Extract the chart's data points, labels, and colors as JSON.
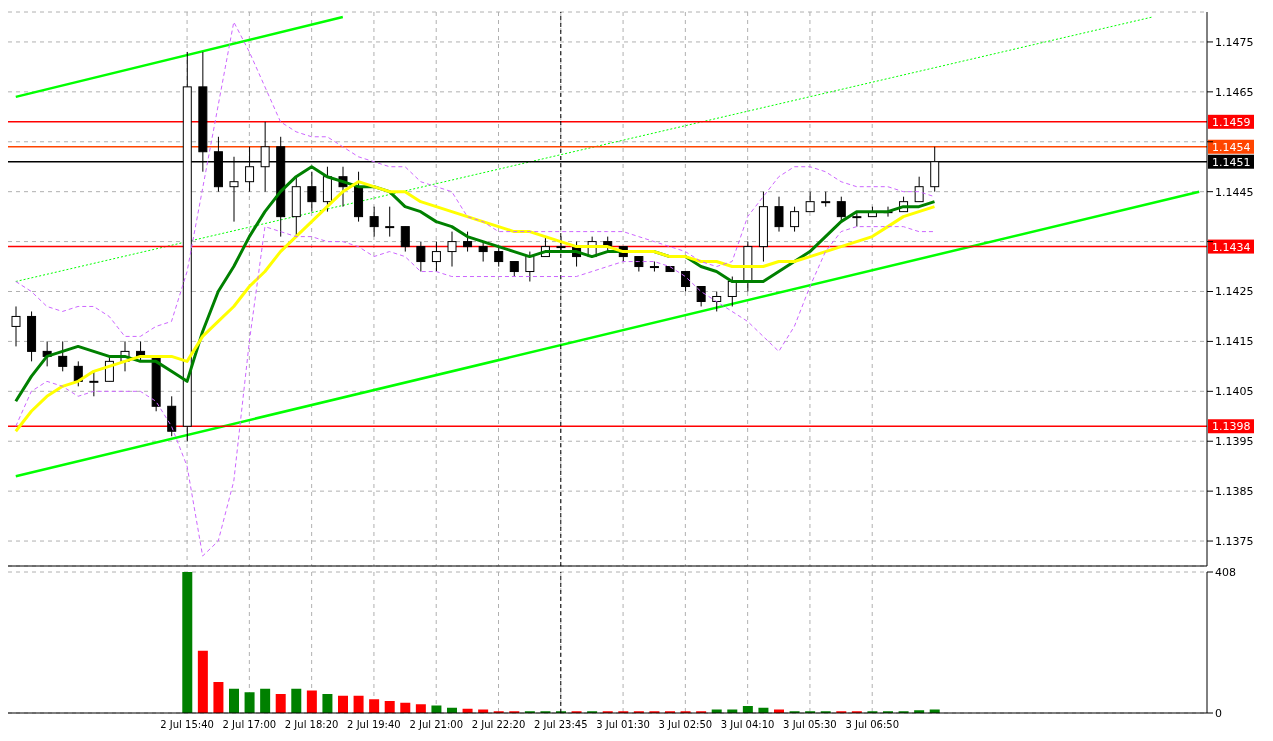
{
  "chart_data": [
    {
      "type": "candlestick",
      "categories": [
        null,
        null,
        null,
        null,
        null,
        null,
        null,
        null,
        null,
        null,
        null,
        "2 Jul 15:40",
        null,
        null,
        null,
        "2 Jul 17:00",
        null,
        null,
        null,
        "2 Jul 18:20",
        null,
        null,
        null,
        "2 Jul 19:40",
        null,
        null,
        null,
        "2 Jul 21:00",
        null,
        null,
        null,
        "2 Jul 22:20",
        null,
        null,
        null,
        "2 Jul 23:45",
        null,
        null,
        null,
        "3 Jul 01:30",
        null,
        null,
        null,
        "3 Jul 02:50",
        null,
        null,
        null,
        "3 Jul 04:10",
        null,
        null,
        null,
        "3 Jul 05:30",
        null,
        null,
        null,
        "3 Jul 06:50",
        null,
        null,
        null,
        null,
        null,
        null,
        null,
        null,
        null,
        null,
        null,
        null,
        null,
        null,
        null,
        null,
        null,
        null,
        null,
        null,
        null
      ],
      "ohlc": [
        [
          1.1418,
          1.1422,
          1.1414,
          1.142
        ],
        [
          1.142,
          1.1421,
          1.1411,
          1.1413
        ],
        [
          1.1413,
          1.1415,
          1.141,
          1.1412
        ],
        [
          1.1412,
          1.1415,
          1.1409,
          1.141
        ],
        [
          1.141,
          1.1411,
          1.1406,
          1.1407
        ],
        [
          1.1407,
          1.1409,
          1.1404,
          1.1407
        ],
        [
          1.1407,
          1.1412,
          1.1407,
          1.1411
        ],
        [
          1.1411,
          1.1415,
          1.1409,
          1.1413
        ],
        [
          1.1413,
          1.1415,
          1.1411,
          1.1412
        ],
        [
          1.1412,
          1.1412,
          1.1401,
          1.1402
        ],
        [
          1.1402,
          1.1404,
          1.1396,
          1.1397
        ],
        [
          1.1398,
          1.1473,
          1.1395,
          1.1466
        ],
        [
          1.1466,
          1.1473,
          1.1449,
          1.1453
        ],
        [
          1.1453,
          1.1456,
          1.1445,
          1.1446
        ],
        [
          1.1446,
          1.1452,
          1.1439,
          1.1447
        ],
        [
          1.1447,
          1.1454,
          1.1445,
          1.145
        ],
        [
          1.145,
          1.1459,
          1.1445,
          1.1454
        ],
        [
          1.1454,
          1.1456,
          1.1436,
          1.144
        ],
        [
          1.144,
          1.1448,
          1.1436,
          1.1446
        ],
        [
          1.1446,
          1.1449,
          1.1441,
          1.1443
        ],
        [
          1.1443,
          1.145,
          1.1441,
          1.1448
        ],
        [
          1.1448,
          1.145,
          1.1442,
          1.1446
        ],
        [
          1.1446,
          1.1449,
          1.1439,
          1.144
        ],
        [
          1.144,
          1.1442,
          1.1436,
          1.1438
        ],
        [
          1.1438,
          1.1442,
          1.1436,
          1.1438
        ],
        [
          1.1438,
          1.1438,
          1.1433,
          1.1434
        ],
        [
          1.1434,
          1.1435,
          1.1429,
          1.1431
        ],
        [
          1.1431,
          1.1435,
          1.1429,
          1.1433
        ],
        [
          1.1433,
          1.1437,
          1.143,
          1.1435
        ],
        [
          1.1435,
          1.1437,
          1.1433,
          1.1434
        ],
        [
          1.1434,
          1.1435,
          1.1431,
          1.1433
        ],
        [
          1.1433,
          1.1434,
          1.143,
          1.1431
        ],
        [
          1.1431,
          1.1431,
          1.1428,
          1.1429
        ],
        [
          1.1429,
          1.1433,
          1.1427,
          1.1432
        ],
        [
          1.1432,
          1.1436,
          1.1432,
          1.1434
        ],
        [
          1.1434,
          1.1436,
          1.1433,
          1.1434
        ],
        [
          1.1434,
          1.1435,
          1.143,
          1.1432
        ],
        [
          1.1432,
          1.1436,
          1.1432,
          1.1435
        ],
        [
          1.1435,
          1.1436,
          1.1433,
          1.1434
        ],
        [
          1.1434,
          1.1434,
          1.1431,
          1.1432
        ],
        [
          1.1432,
          1.1432,
          1.1429,
          1.143
        ],
        [
          1.143,
          1.1431,
          1.1429,
          1.143
        ],
        [
          1.143,
          1.143,
          1.1429,
          1.1429
        ],
        [
          1.1429,
          1.1429,
          1.1425,
          1.1426
        ],
        [
          1.1426,
          1.1426,
          1.1422,
          1.1423
        ],
        [
          1.1423,
          1.1425,
          1.1421,
          1.1424
        ],
        [
          1.1424,
          1.1428,
          1.1422,
          1.1427
        ],
        [
          1.1427,
          1.1435,
          1.1425,
          1.1434
        ],
        [
          1.1434,
          1.1445,
          1.1431,
          1.1442
        ],
        [
          1.1442,
          1.1444,
          1.1437,
          1.1438
        ],
        [
          1.1438,
          1.1442,
          1.1437,
          1.1441
        ],
        [
          1.1441,
          1.1445,
          1.1441,
          1.1443
        ],
        [
          1.1443,
          1.1445,
          1.1442,
          1.1443
        ],
        [
          1.1443,
          1.1444,
          1.1439,
          1.144
        ],
        [
          1.144,
          1.1441,
          1.1438,
          1.144
        ],
        [
          1.144,
          1.1442,
          1.144,
          1.1441
        ],
        [
          1.1441,
          1.1442,
          1.144,
          1.1441
        ],
        [
          1.1441,
          1.1444,
          1.1441,
          1.1443
        ],
        [
          1.1443,
          1.1448,
          1.1443,
          1.1446
        ],
        [
          1.1446,
          1.1454,
          1.1445,
          1.1451
        ],
        null,
        null,
        null,
        null,
        null,
        null,
        null,
        null,
        null,
        null,
        null,
        null,
        null,
        null,
        null,
        null,
        null
      ],
      "series": [
        {
          "type": "line",
          "color": "#008000",
          "values": [
            1.1403,
            1.1408,
            1.1412,
            1.1413,
            1.1414,
            1.1413,
            1.1412,
            1.1412,
            1.1411,
            1.1411,
            1.1409,
            1.1407,
            1.1417,
            1.1425,
            1.143,
            1.1436,
            1.1441,
            1.1445,
            1.1448,
            1.145,
            1.1448,
            1.1447,
            1.1446,
            1.1446,
            1.1445,
            1.1442,
            1.1441,
            1.1439,
            1.1438,
            1.1436,
            1.1435,
            1.1434,
            1.1433,
            1.1432,
            1.1433,
            1.1433,
            1.1433,
            1.1432,
            1.1433,
            1.1433,
            1.1433,
            1.1433,
            1.1432,
            1.1432,
            1.143,
            1.1429,
            1.1427,
            1.1427,
            1.1427,
            1.1429,
            1.1431,
            1.1433,
            1.1436,
            1.1439,
            1.1441,
            1.1441,
            1.1441,
            1.1442,
            1.1442,
            1.1443,
            null,
            null,
            null,
            null,
            null,
            null,
            null,
            null,
            null,
            null,
            null,
            null,
            null,
            null,
            null,
            null,
            null
          ]
        },
        {
          "type": "line",
          "color": "#ffff00",
          "values": [
            1.1397,
            1.1401,
            1.1404,
            1.1406,
            1.1407,
            1.1409,
            1.141,
            1.1411,
            1.1412,
            1.1412,
            1.1412,
            1.1411,
            1.1416,
            1.1419,
            1.1422,
            1.1426,
            1.1429,
            1.1433,
            1.1436,
            1.1439,
            1.1442,
            1.1445,
            1.1447,
            1.1446,
            1.1445,
            1.1445,
            1.1443,
            1.1442,
            1.1441,
            1.144,
            1.1439,
            1.1438,
            1.1437,
            1.1437,
            1.1436,
            1.1435,
            1.1434,
            1.1434,
            1.1434,
            1.1433,
            1.1433,
            1.1433,
            1.1432,
            1.1432,
            1.1431,
            1.1431,
            1.143,
            1.143,
            1.143,
            1.1431,
            1.1431,
            1.1432,
            1.1433,
            1.1434,
            1.1435,
            1.1436,
            1.1438,
            1.144,
            1.1441,
            1.1442,
            null,
            null,
            null,
            null,
            null,
            null,
            null,
            null,
            null,
            null,
            null,
            null,
            null,
            null,
            null,
            null,
            null
          ]
        },
        {
          "type": "line",
          "color": "#cc66ff",
          "line_style": "dashed",
          "values": [
            1.1427,
            1.1425,
            1.1422,
            1.1421,
            1.1422,
            1.1422,
            1.142,
            1.1416,
            1.1416,
            1.1418,
            1.1419,
            1.1429,
            null,
            null,
            1.1479,
            1.1473,
            1.1466,
            1.1459,
            1.1457,
            1.1456,
            1.1456,
            1.1454,
            1.1452,
            1.1451,
            1.145,
            1.145,
            1.1447,
            1.1446,
            1.1445,
            1.144,
            1.1439,
            1.1437,
            1.1437,
            1.1437,
            1.1437,
            1.1437,
            1.1437,
            1.1437,
            1.1437,
            1.1437,
            1.1436,
            1.1435,
            1.1434,
            1.1433,
            1.1431,
            1.143,
            1.1431,
            1.144,
            1.1444,
            1.1448,
            1.145,
            1.145,
            1.1449,
            1.1447,
            1.1446,
            1.1446,
            1.1446,
            1.1445,
            1.1445,
            1.1444,
            null,
            null,
            null,
            null,
            null,
            null,
            null,
            null,
            null,
            null,
            null,
            null,
            null,
            null,
            null,
            null,
            null
          ]
        },
        {
          "type": "line",
          "color": "#cc66ff",
          "line_style": "dashed",
          "values": [
            1.1398,
            1.1405,
            1.1407,
            1.1406,
            1.1404,
            1.1405,
            1.1405,
            1.1405,
            1.1405,
            1.1403,
            1.1398,
            1.139,
            1.1372,
            1.1375,
            1.1387,
            1.1415,
            1.1438,
            1.1437,
            1.1436,
            1.1436,
            1.1435,
            1.1435,
            1.1434,
            1.1432,
            1.1433,
            1.1432,
            1.1429,
            1.1429,
            1.1428,
            1.1428,
            1.1428,
            1.1428,
            1.1428,
            1.1428,
            1.1428,
            1.1428,
            1.1428,
            1.1429,
            1.143,
            1.1431,
            1.1431,
            1.1431,
            1.143,
            1.1428,
            1.1425,
            1.1423,
            1.1421,
            1.1419,
            1.1416,
            1.1413,
            1.1418,
            1.1426,
            1.1433,
            1.1437,
            1.1438,
            1.1438,
            1.1438,
            1.1438,
            1.1437,
            1.1437,
            null,
            null,
            null,
            null,
            null,
            null,
            null,
            null,
            null,
            null,
            null,
            null,
            null,
            null,
            null,
            null,
            null
          ]
        },
        {
          "type": "line",
          "color": "#00ff00",
          "values": [
            1.1388,
            null,
            null,
            null,
            null,
            null,
            null,
            null,
            null,
            null,
            null,
            null,
            null,
            null,
            null,
            null,
            null,
            null,
            null,
            null,
            null,
            null,
            null,
            null,
            null,
            null,
            null,
            null,
            null,
            null,
            null,
            null,
            null,
            null,
            null,
            null,
            null,
            null,
            null,
            null,
            null,
            null,
            null,
            null,
            null,
            null,
            null,
            null,
            null,
            null,
            null,
            null,
            null,
            null,
            null,
            null,
            null,
            null,
            null,
            null,
            null,
            null,
            null,
            null,
            null,
            null,
            null,
            null,
            null,
            null,
            null,
            null,
            null,
            null,
            null,
            null,
            1.1445
          ]
        },
        {
          "type": "line",
          "color": "#00ff00",
          "values": [
            1.1464,
            null,
            null,
            null,
            null,
            null,
            null,
            null,
            null,
            null,
            null,
            null,
            null,
            null,
            null,
            null,
            null,
            null,
            null,
            null,
            null,
            1.148,
            null,
            null,
            null,
            null,
            null,
            null,
            null,
            null,
            null,
            null,
            null,
            null,
            null,
            null,
            null,
            null,
            null,
            null,
            null,
            null,
            null,
            null,
            null,
            null,
            null,
            null,
            null,
            null,
            null,
            null,
            null,
            null,
            null,
            null,
            null,
            null,
            null,
            null,
            null,
            null,
            null,
            null,
            null,
            null,
            null,
            null,
            null,
            null,
            null,
            null,
            null,
            null,
            null,
            null,
            null
          ]
        },
        {
          "type": "line",
          "color": "#00ff00",
          "line_style": "dotted",
          "values": [
            1.1427,
            null,
            null,
            null,
            null,
            null,
            null,
            null,
            null,
            null,
            null,
            null,
            null,
            null,
            null,
            null,
            null,
            null,
            null,
            null,
            null,
            null,
            null,
            null,
            null,
            null,
            null,
            null,
            null,
            null,
            null,
            null,
            null,
            null,
            null,
            null,
            null,
            null,
            null,
            null,
            null,
            null,
            null,
            null,
            null,
            null,
            null,
            null,
            null,
            null,
            null,
            null,
            null,
            null,
            null,
            null,
            null,
            null,
            null,
            null,
            null,
            null,
            null,
            null,
            null,
            null,
            null,
            null,
            null,
            null,
            null,
            null,
            null,
            1.148,
            null,
            null,
            null
          ]
        }
      ],
      "ylim": [
        1.137,
        1.1481
      ],
      "yticks": [
        1.1375,
        1.1385,
        1.1395,
        1.1405,
        1.1415,
        1.1425,
        {
          "value": 1.1435,
          "label": null
        },
        1.1445,
        {
          "value": 1.1455,
          "label": null
        },
        1.1465,
        1.1475
      ],
      "ref_lines": [
        {
          "axis": "y",
          "value": 1.1459,
          "label": "1.1459",
          "color": "#ff0000"
        },
        {
          "axis": "y",
          "value": 1.1454,
          "label": "1.1454",
          "color": "#ff4500"
        },
        {
          "axis": "y",
          "value": 1.1451,
          "label": "1.1451",
          "color": "#000000"
        },
        {
          "axis": "y",
          "value": 1.1434,
          "label": "1.1434",
          "color": "#ff0000"
        },
        {
          "axis": "y",
          "value": 1.1398,
          "label": "1.1398",
          "color": "#ff0000"
        },
        {
          "axis": "x",
          "value": "2 Jul 23:45",
          "color": "#000000",
          "line_style": "dashed"
        }
      ],
      "grid": true,
      "legend": false,
      "tick_labels": "y"
    },
    {
      "type": "bar",
      "categories": [
        null,
        null,
        null,
        null,
        null,
        null,
        null,
        null,
        null,
        null,
        null,
        "2 Jul 15:40",
        null,
        null,
        null,
        "2 Jul 17:00",
        null,
        null,
        null,
        "2 Jul 18:20",
        null,
        null,
        null,
        "2 Jul 19:40",
        null,
        null,
        null,
        "2 Jul 21:00",
        null,
        null,
        null,
        "2 Jul 22:20",
        null,
        null,
        null,
        "2 Jul 23:45",
        null,
        null,
        null,
        "3 Jul 01:30",
        null,
        null,
        null,
        "3 Jul 02:50",
        null,
        null,
        null,
        "3 Jul 04:10",
        null,
        null,
        null,
        "3 Jul 05:30",
        null,
        null,
        null,
        "3 Jul 06:50",
        null,
        null,
        null,
        null,
        null,
        null,
        null,
        null,
        null,
        null,
        null,
        null,
        null,
        null,
        null,
        null,
        null,
        null,
        null,
        null,
        null
      ],
      "values": [
        null,
        null,
        null,
        null,
        null,
        null,
        null,
        null,
        null,
        null,
        null,
        408,
        180,
        90,
        70,
        60,
        70,
        55,
        70,
        65,
        55,
        50,
        50,
        40,
        35,
        30,
        25,
        22,
        15,
        12,
        10,
        5,
        5,
        5,
        5,
        5,
        5,
        5,
        5,
        5,
        5,
        5,
        5,
        5,
        5,
        10,
        10,
        20,
        15,
        10,
        5,
        5,
        5,
        5,
        5,
        5,
        5,
        5,
        8,
        10,
        null,
        null,
        null,
        null,
        null,
        null,
        null,
        null,
        null,
        null,
        null,
        null,
        null,
        null,
        null,
        null,
        null
      ],
      "colors": [
        null,
        null,
        null,
        null,
        null,
        null,
        null,
        null,
        null,
        null,
        null,
        "#008000",
        "#ff0000",
        "#ff0000",
        "#008000",
        "#008000",
        "#008000",
        "#ff0000",
        "#008000",
        "#ff0000",
        "#008000",
        "#ff0000",
        "#ff0000",
        "#ff0000",
        "#ff0000",
        "#ff0000",
        "#ff0000",
        "#008000",
        "#008000",
        "#ff0000",
        "#ff0000",
        "#ff0000",
        "#ff0000",
        "#008000",
        "#008000",
        "#008000",
        "#ff0000",
        "#008000",
        "#ff0000",
        "#ff0000",
        "#ff0000",
        "#ff0000",
        "#ff0000",
        "#ff0000",
        "#ff0000",
        "#008000",
        "#008000",
        "#008000",
        "#008000",
        "#ff0000",
        "#008000",
        "#008000",
        "#008000",
        "#ff0000",
        "#ff0000",
        "#008000",
        "#008000",
        "#008000",
        "#008000",
        "#008000",
        null,
        null,
        null,
        null,
        null,
        null,
        null,
        null,
        null,
        null,
        null,
        null,
        null,
        null,
        null,
        null,
        null
      ],
      "ylim": [
        0,
        408
      ],
      "yticks": [
        0,
        408
      ],
      "ref_lines": [
        {
          "axis": "x",
          "value": "2 Jul 23:45",
          "color": "#000000",
          "line_style": "dashed"
        }
      ],
      "grid": true,
      "legend": false
    }
  ]
}
